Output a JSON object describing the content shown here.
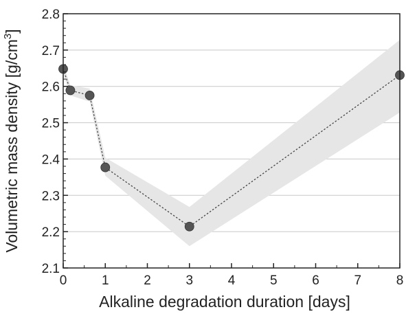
{
  "chart_data": {
    "type": "line",
    "title": "",
    "xlabel": "Alkaline degradation duration [days]",
    "ylabel_main": "Volumetric mass density [g/cm",
    "ylabel_sup": "3",
    "ylabel_close": "]",
    "xlim": [
      0,
      8
    ],
    "ylim": [
      2.1,
      2.8
    ],
    "xticks": [
      0,
      1,
      2,
      3,
      4,
      5,
      6,
      7,
      8
    ],
    "xtick_labels": [
      "0",
      "1",
      "2",
      "3",
      "4",
      "5",
      "6",
      "7",
      "8"
    ],
    "yticks": [
      2.1,
      2.2,
      2.3,
      2.4,
      2.5,
      2.6,
      2.7,
      2.8
    ],
    "ytick_labels": [
      "2.1",
      "2.2",
      "2.3",
      "2.4",
      "2.5",
      "2.6",
      "2.7",
      "2.8"
    ],
    "grid": "horizontal",
    "legend": "none",
    "series": [
      {
        "x": [
          0,
          0.17,
          0.63,
          1,
          3,
          8
        ],
        "y": [
          2.648,
          2.589,
          2.575,
          2.377,
          2.214,
          2.631
        ],
        "band_upper": [
          2.662,
          2.603,
          2.594,
          2.404,
          2.268,
          2.728
        ],
        "band_lower": [
          2.634,
          2.575,
          2.558,
          2.354,
          2.16,
          2.528
        ],
        "marker_color": "#555555",
        "line_style": "dotted",
        "band_color": "#e6e6e6"
      }
    ]
  }
}
